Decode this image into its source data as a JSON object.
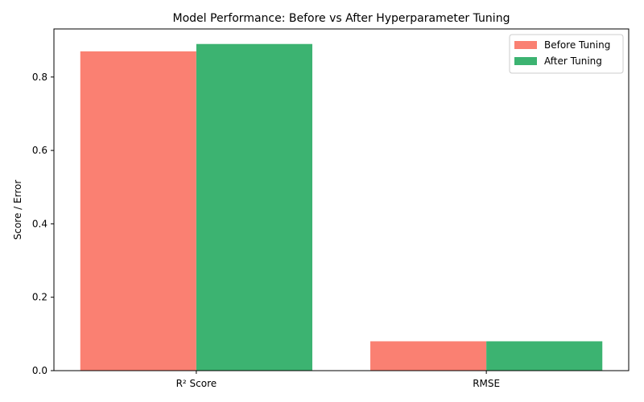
{
  "chart_data": {
    "type": "bar",
    "title": "Model Performance: Before vs After Hyperparameter Tuning",
    "xlabel": "",
    "ylabel": "Score / Error",
    "categories": [
      "R² Score",
      "RMSE"
    ],
    "series": [
      {
        "name": "Before Tuning",
        "values": [
          0.87,
          0.08
        ],
        "color": "#fa8072"
      },
      {
        "name": "After Tuning",
        "values": [
          0.89,
          0.08
        ],
        "color": "#3cb371"
      }
    ],
    "ylim": [
      0,
      0.931
    ],
    "yticks": [
      0.0,
      0.2,
      0.4,
      0.6,
      0.8
    ],
    "ytick_labels": [
      "0.0",
      "0.2",
      "0.4",
      "0.6",
      "0.8"
    ],
    "grid": false,
    "legend_position": "top-right"
  }
}
